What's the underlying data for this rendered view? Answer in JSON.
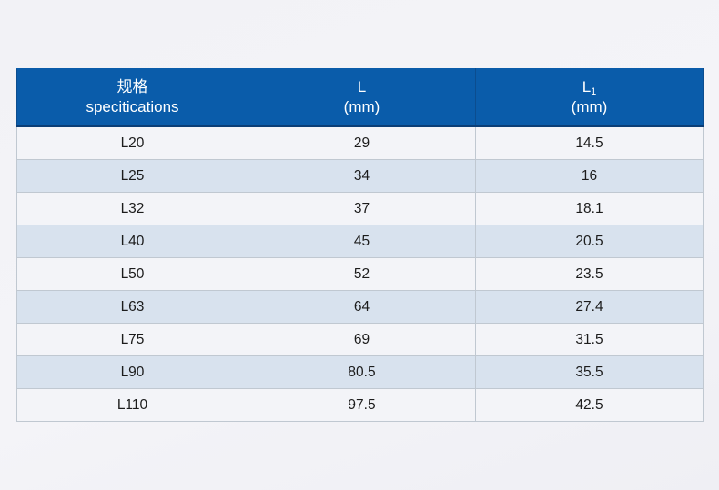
{
  "chart_data": {
    "type": "table",
    "title": "Pipe fitting dimensions table",
    "columns": [
      {
        "line1": "规格",
        "sub": "",
        "line2": "specitications"
      },
      {
        "line1": "L",
        "sub": "",
        "line2": "(mm)"
      },
      {
        "line1": "L",
        "sub": "1",
        "line2": "(mm)"
      }
    ],
    "rows": [
      [
        "L20",
        "29",
        "14.5"
      ],
      [
        "L25",
        "34",
        "16"
      ],
      [
        "L32",
        "37",
        "18.1"
      ],
      [
        "L40",
        "45",
        "20.5"
      ],
      [
        "L50",
        "52",
        "23.5"
      ],
      [
        "L63",
        "64",
        "27.4"
      ],
      [
        "L75",
        "69",
        "31.5"
      ],
      [
        "L90",
        "80.5",
        "35.5"
      ],
      [
        "L110",
        "97.5",
        "42.5"
      ]
    ],
    "layout": {
      "striped": true,
      "stripe_order": "light-first"
    }
  },
  "colors": {
    "header_bg": "#0a5caa",
    "header_divider": "#0b4d8f",
    "header_bottom_border": "#0a3e77",
    "header_text": "#ffffff",
    "row_light": "#f3f4f8",
    "row_blue": "#d8e2ee",
    "cell_border": "#c0c8d1",
    "outer_border": "#b2bac4",
    "body_text": "#1c1c1c",
    "page_bg": "#f2f2f6"
  }
}
